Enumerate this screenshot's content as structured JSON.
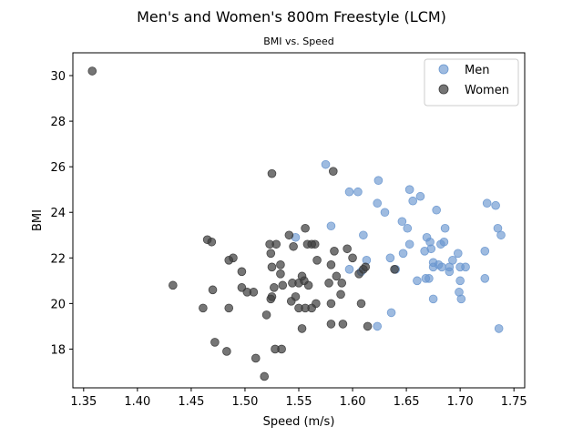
{
  "chart_data": {
    "type": "scatter",
    "title": "Men's and Women's 800m Freestyle (LCM)",
    "subtitle": "BMI vs. Speed",
    "xlabel": "Speed (m/s)",
    "ylabel": "BMI",
    "xlim": [
      1.34,
      1.76
    ],
    "ylim": [
      16.3,
      31.0
    ],
    "xticks": [
      "1.35",
      "1.40",
      "1.45",
      "1.50",
      "1.55",
      "1.60",
      "1.65",
      "1.70",
      "1.75"
    ],
    "yticks": [
      "18",
      "20",
      "22",
      "24",
      "26",
      "28",
      "30"
    ],
    "grid": false,
    "legend_position": "top-right",
    "series": [
      {
        "name": "Men",
        "color": "#6a97cf",
        "points": [
          [
            1.575,
            26.1
          ],
          [
            1.624,
            25.4
          ],
          [
            1.597,
            24.9
          ],
          [
            1.605,
            24.9
          ],
          [
            1.653,
            25.0
          ],
          [
            1.663,
            24.7
          ],
          [
            1.623,
            24.4
          ],
          [
            1.656,
            24.5
          ],
          [
            1.678,
            24.1
          ],
          [
            1.63,
            24.0
          ],
          [
            1.725,
            24.4
          ],
          [
            1.733,
            24.3
          ],
          [
            1.646,
            23.6
          ],
          [
            1.651,
            23.3
          ],
          [
            1.686,
            23.3
          ],
          [
            1.735,
            23.3
          ],
          [
            1.738,
            23.0
          ],
          [
            1.61,
            23.0
          ],
          [
            1.58,
            23.4
          ],
          [
            1.547,
            22.9
          ],
          [
            1.669,
            22.9
          ],
          [
            1.672,
            22.7
          ],
          [
            1.685,
            22.7
          ],
          [
            1.682,
            22.6
          ],
          [
            1.653,
            22.6
          ],
          [
            1.667,
            22.3
          ],
          [
            1.673,
            22.4
          ],
          [
            1.698,
            22.2
          ],
          [
            1.723,
            22.3
          ],
          [
            1.647,
            22.2
          ],
          [
            1.635,
            22.0
          ],
          [
            1.613,
            21.9
          ],
          [
            1.675,
            21.8
          ],
          [
            1.68,
            21.7
          ],
          [
            1.675,
            21.6
          ],
          [
            1.683,
            21.6
          ],
          [
            1.693,
            21.9
          ],
          [
            1.7,
            21.6
          ],
          [
            1.705,
            21.6
          ],
          [
            1.69,
            21.6
          ],
          [
            1.69,
            21.4
          ],
          [
            1.608,
            21.4
          ],
          [
            1.597,
            21.5
          ],
          [
            1.64,
            21.5
          ],
          [
            1.668,
            21.1
          ],
          [
            1.66,
            21.0
          ],
          [
            1.671,
            21.1
          ],
          [
            1.7,
            21.0
          ],
          [
            1.723,
            21.1
          ],
          [
            1.699,
            20.5
          ],
          [
            1.675,
            20.2
          ],
          [
            1.701,
            20.2
          ],
          [
            1.636,
            19.6
          ],
          [
            1.623,
            19.0
          ],
          [
            1.736,
            18.9
          ]
        ]
      },
      {
        "name": "Women",
        "color": "#3b3b3b",
        "points": [
          [
            1.358,
            30.2
          ],
          [
            1.525,
            25.7
          ],
          [
            1.582,
            25.8
          ],
          [
            1.541,
            23.0
          ],
          [
            1.556,
            23.3
          ],
          [
            1.465,
            22.8
          ],
          [
            1.469,
            22.7
          ],
          [
            1.523,
            22.6
          ],
          [
            1.529,
            22.6
          ],
          [
            1.545,
            22.5
          ],
          [
            1.558,
            22.6
          ],
          [
            1.562,
            22.6
          ],
          [
            1.565,
            22.6
          ],
          [
            1.595,
            22.4
          ],
          [
            1.583,
            22.3
          ],
          [
            1.524,
            22.2
          ],
          [
            1.489,
            22.0
          ],
          [
            1.485,
            21.9
          ],
          [
            1.567,
            21.9
          ],
          [
            1.6,
            22.0
          ],
          [
            1.533,
            21.7
          ],
          [
            1.525,
            21.6
          ],
          [
            1.58,
            21.7
          ],
          [
            1.61,
            21.5
          ],
          [
            1.612,
            21.6
          ],
          [
            1.639,
            21.5
          ],
          [
            1.606,
            21.3
          ],
          [
            1.497,
            21.4
          ],
          [
            1.533,
            21.3
          ],
          [
            1.544,
            20.9
          ],
          [
            1.55,
            20.9
          ],
          [
            1.553,
            21.2
          ],
          [
            1.555,
            21.0
          ],
          [
            1.585,
            21.2
          ],
          [
            1.433,
            20.8
          ],
          [
            1.497,
            20.7
          ],
          [
            1.527,
            20.7
          ],
          [
            1.535,
            20.8
          ],
          [
            1.559,
            20.8
          ],
          [
            1.578,
            20.9
          ],
          [
            1.59,
            20.9
          ],
          [
            1.47,
            20.6
          ],
          [
            1.502,
            20.5
          ],
          [
            1.508,
            20.5
          ],
          [
            1.547,
            20.3
          ],
          [
            1.589,
            20.4
          ],
          [
            1.524,
            20.2
          ],
          [
            1.525,
            20.3
          ],
          [
            1.543,
            20.1
          ],
          [
            1.566,
            20.0
          ],
          [
            1.58,
            20.0
          ],
          [
            1.608,
            20.0
          ],
          [
            1.461,
            19.8
          ],
          [
            1.485,
            19.8
          ],
          [
            1.55,
            19.8
          ],
          [
            1.556,
            19.8
          ],
          [
            1.562,
            19.8
          ],
          [
            1.52,
            19.5
          ],
          [
            1.58,
            19.1
          ],
          [
            1.591,
            19.1
          ],
          [
            1.614,
            19.0
          ],
          [
            1.553,
            18.9
          ],
          [
            1.472,
            18.3
          ],
          [
            1.528,
            18.0
          ],
          [
            1.534,
            18.0
          ],
          [
            1.483,
            17.9
          ],
          [
            1.51,
            17.6
          ],
          [
            1.518,
            16.8
          ]
        ]
      }
    ]
  }
}
